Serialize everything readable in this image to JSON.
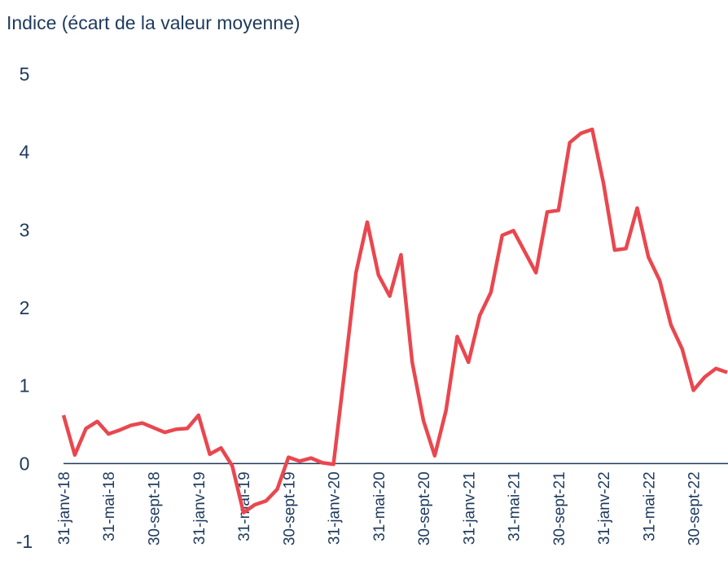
{
  "chart_data": {
    "type": "line",
    "title": "Indice (écart de la valeur moyenne)",
    "categories": [
      "31-janv-18",
      null,
      null,
      null,
      "31-mai-18",
      null,
      null,
      null,
      "30-sept-18",
      null,
      null,
      null,
      "31-janv-19",
      null,
      null,
      null,
      "31-mai-19",
      null,
      null,
      null,
      "30-sept-19",
      null,
      null,
      null,
      "31-janv-20",
      null,
      null,
      null,
      "31-mai-20",
      null,
      null,
      null,
      "30-sept-20",
      null,
      null,
      null,
      "31-janv-21",
      null,
      null,
      null,
      "31-mai-21",
      null,
      null,
      null,
      "30-sept-21",
      null,
      null,
      null,
      "31-janv-22",
      null,
      null,
      null,
      "31-mai-22",
      null,
      null,
      null,
      "30-sept-22",
      null,
      null,
      null
    ],
    "series": [
      {
        "name": null,
        "color": "#e9474f",
        "values": [
          0.62,
          0.11,
          0.45,
          0.54,
          0.38,
          0.43,
          0.49,
          0.52,
          0.46,
          0.4,
          0.44,
          0.45,
          0.62,
          0.12,
          0.2,
          -0.03,
          -0.63,
          -0.53,
          -0.48,
          -0.33,
          0.08,
          0.03,
          0.07,
          0.01,
          -0.01,
          1.2,
          2.45,
          3.1,
          2.42,
          2.15,
          2.68,
          1.3,
          0.55,
          0.1,
          0.68,
          1.63,
          1.3,
          1.9,
          2.2,
          2.93,
          2.99,
          2.72,
          2.45,
          3.23,
          3.25,
          4.12,
          4.24,
          4.29,
          3.6,
          2.74,
          2.76,
          3.28,
          2.65,
          2.35,
          1.78,
          1.47,
          0.94,
          1.11,
          1.22,
          1.17
        ]
      }
    ],
    "ylim": [
      -1,
      5
    ],
    "yticks": [
      -1,
      0,
      1,
      2,
      3,
      4,
      5
    ],
    "grid": false
  }
}
